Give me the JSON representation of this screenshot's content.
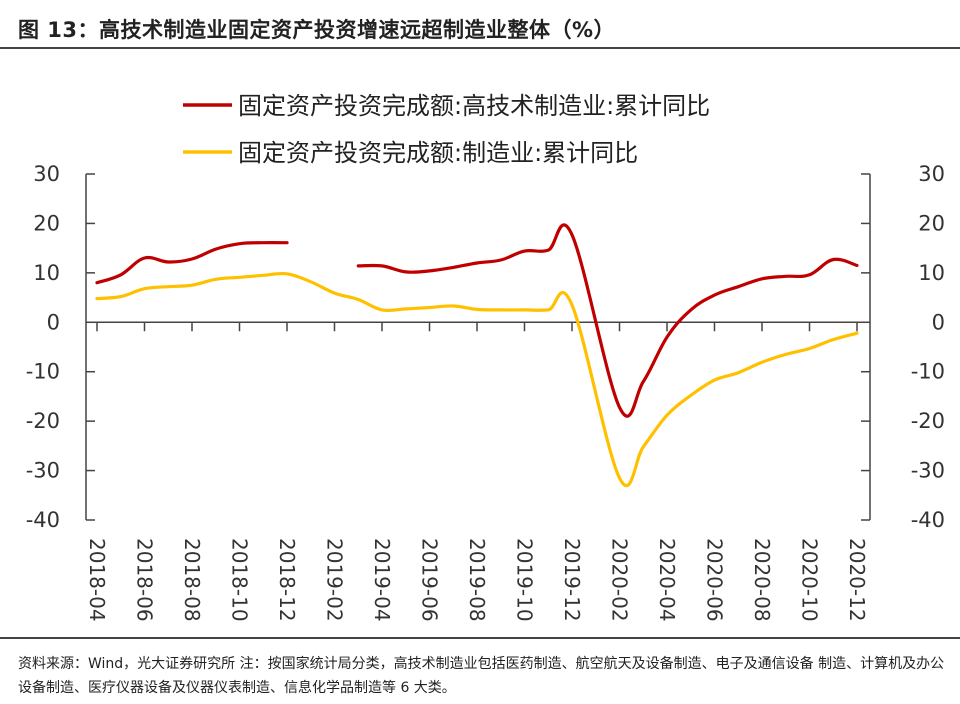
{
  "header": {
    "title": "图 13：高技术制造业固定资产投资增速远超制造业整体（%）"
  },
  "footer": {
    "note": "资料来源：Wind，光大证券研究所  注：按国家统计局分类，高技术制造业包括医药制造、航空航天及设备制造、电子及通信设备 制造、计算机及办公设备制造、医疗仪器设备及仪器仪表制造、信息化学品制造等 6 大类。"
  },
  "chart_data": {
    "type": "line",
    "title": "图 13：高技术制造业固定资产投资增速远超制造业整体（%）",
    "xlabel": "",
    "ylabel": "%",
    "ylim": [
      -40,
      30
    ],
    "yticks": [
      30,
      20,
      10,
      0,
      -10,
      -20,
      -30,
      -40
    ],
    "ytick_labels": [
      "30",
      "20",
      "10",
      "0",
      "-10",
      "-20",
      "-30",
      "-40"
    ],
    "grid": false,
    "legend_position": "top-center",
    "x": [
      "2018-04",
      "2018-05",
      "2018-06",
      "2018-07",
      "2018-08",
      "2018-09",
      "2018-10",
      "2018-11",
      "2018-12",
      "2019-01",
      "2019-02",
      "2019-03",
      "2019-04",
      "2019-05",
      "2019-06",
      "2019-07",
      "2019-08",
      "2019-09",
      "2019-10",
      "2019-11",
      "2019-12",
      "2020-01",
      "2020-02",
      "2020-03",
      "2020-04",
      "2020-05",
      "2020-06",
      "2020-07",
      "2020-08",
      "2020-09",
      "2020-10",
      "2020-11",
      "2020-12"
    ],
    "xtick_labels": [
      "2018-04",
      "2018-06",
      "2018-08",
      "2018-10",
      "2018-12",
      "2019-02",
      "2019-04",
      "2019-06",
      "2019-08",
      "2019-10",
      "2019-12",
      "2020-02",
      "2020-04",
      "2020-06",
      "2020-08",
      "2020-10",
      "2020-12"
    ],
    "series": [
      {
        "name": "固定资产投资完成额:高技术制造业:累计同比",
        "color": "#c00000",
        "values": [
          8.0,
          9.6,
          13.0,
          12.2,
          12.8,
          14.8,
          15.9,
          16.1,
          16.1,
          null,
          null,
          11.4,
          11.4,
          10.2,
          10.4,
          11.1,
          12.0,
          12.6,
          14.4,
          14.6,
          17.7,
          null,
          -17.2,
          -12.0,
          -3.0,
          2.5,
          5.5,
          7.2,
          8.8,
          9.3,
          9.6,
          12.7,
          11.5
        ]
      },
      {
        "name": "固定资产投资完成额:制造业:累计同比",
        "color": "#ffc000",
        "values": [
          4.8,
          5.2,
          6.8,
          7.2,
          7.5,
          8.7,
          9.1,
          9.5,
          9.8,
          8.2,
          5.9,
          4.6,
          2.5,
          2.7,
          3.0,
          3.3,
          2.6,
          2.5,
          2.5,
          2.5,
          3.5,
          null,
          -31.5,
          -25.2,
          -18.8,
          -14.8,
          -11.7,
          -10.2,
          -8.1,
          -6.5,
          -5.3,
          -3.5,
          -2.2
        ]
      }
    ]
  }
}
